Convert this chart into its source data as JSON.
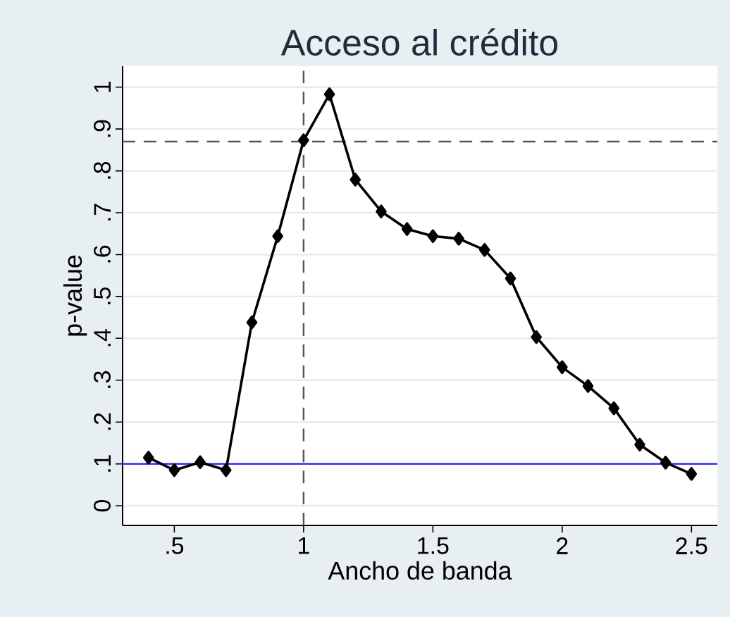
{
  "chart_data": {
    "type": "line",
    "title": "Acceso al crédito",
    "xlabel": "Ancho de banda",
    "ylabel": "p-value",
    "x": [
      0.4,
      0.5,
      0.6,
      0.7,
      0.8,
      0.9,
      1.0,
      1.1,
      1.2,
      1.3,
      1.4,
      1.5,
      1.6,
      1.7,
      1.8,
      1.9,
      2.0,
      2.1,
      2.2,
      2.3,
      2.4,
      2.5
    ],
    "series": [
      {
        "color": "#000000",
        "values": [
          0.115,
          0.085,
          0.104,
          0.085,
          0.438,
          0.644,
          0.873,
          0.983,
          0.779,
          0.703,
          0.661,
          0.644,
          0.638,
          0.611,
          0.543,
          0.403,
          0.331,
          0.286,
          0.233,
          0.146,
          0.103,
          0.076
        ]
      }
    ],
    "xlim": [
      0.3,
      2.6
    ],
    "ylim": [
      -0.047,
      1.05
    ],
    "xticks": [
      {
        "value": 0.5,
        "label": ".5"
      },
      1,
      1.5,
      2,
      2.5
    ],
    "yticks": [
      0,
      {
        "value": 0.1,
        "label": ".1"
      },
      {
        "value": 0.2,
        "label": ".2"
      },
      {
        "value": 0.3,
        "label": ".3"
      },
      {
        "value": 0.4,
        "label": ".4"
      },
      {
        "value": 0.5,
        "label": ".5"
      },
      {
        "value": 0.6,
        "label": ".6"
      },
      {
        "value": 0.7,
        "label": ".7"
      },
      {
        "value": 0.8,
        "label": ".8"
      },
      {
        "value": 0.9,
        "label": ".9"
      },
      1
    ],
    "grid": "y",
    "marker": "diamond",
    "line_style": "solid",
    "ref_lines": [
      {
        "axis": "x",
        "value": 1,
        "color": "#555555",
        "line_style": "dashed"
      },
      {
        "axis": "y",
        "value": 0.87,
        "color": "#555555",
        "line_style": "dashed"
      },
      {
        "axis": "y",
        "value": 0.1,
        "color": "#1a1aff",
        "line_style": "solid"
      }
    ]
  }
}
